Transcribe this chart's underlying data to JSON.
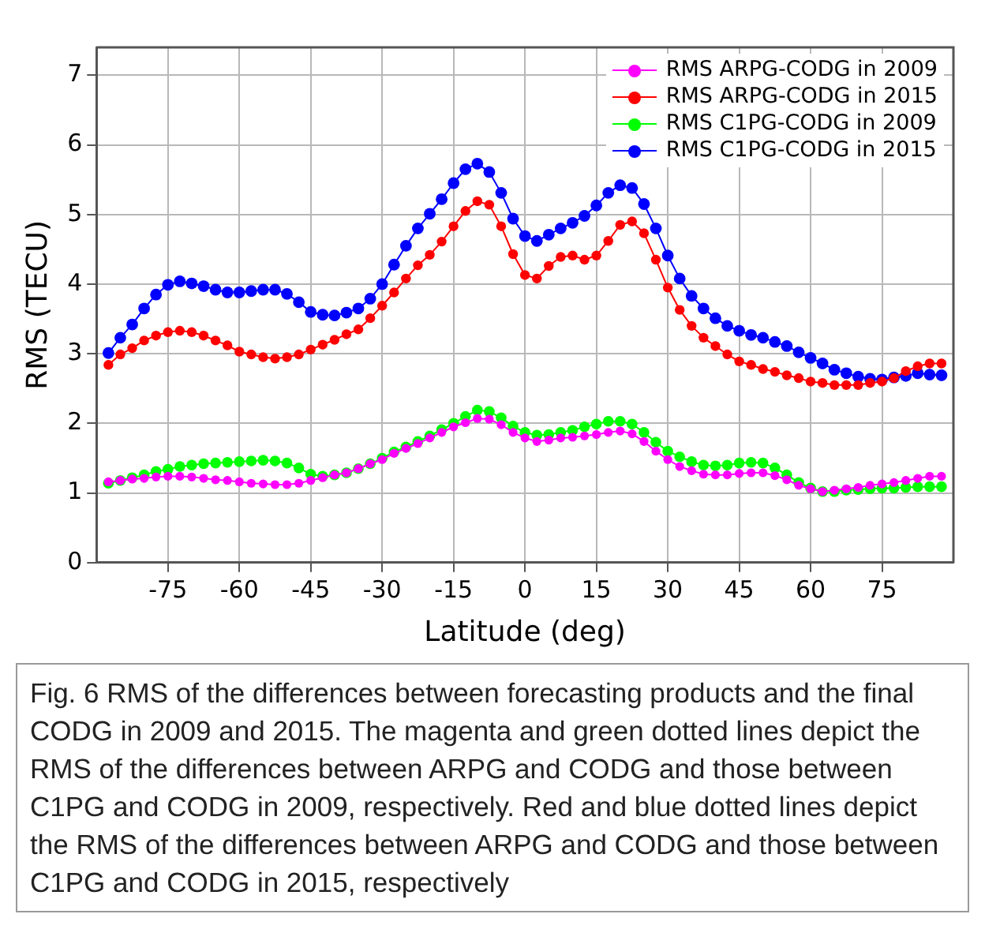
{
  "chart_data": {
    "type": "line",
    "xlabel": "Latitude (deg)",
    "ylabel": "RMS (TECU)",
    "x": [
      -87.5,
      -85,
      -82.5,
      -80,
      -77.5,
      -75,
      -72.5,
      -70,
      -67.5,
      -65,
      -62.5,
      -60,
      -57.5,
      -55,
      -52.5,
      -50,
      -47.5,
      -45,
      -42.5,
      -40,
      -37.5,
      -35,
      -32.5,
      -30,
      -27.5,
      -25,
      -22.5,
      -20,
      -17.5,
      -15,
      -12.5,
      -10,
      -7.5,
      -5,
      -2.5,
      0,
      2.5,
      5,
      7.5,
      10,
      12.5,
      15,
      17.5,
      20,
      22.5,
      25,
      27.5,
      30,
      32.5,
      35,
      37.5,
      40,
      42.5,
      45,
      47.5,
      50,
      52.5,
      55,
      57.5,
      60,
      62.5,
      65,
      67.5,
      70,
      72.5,
      75,
      77.5,
      80,
      82.5,
      85,
      87.5
    ],
    "xlim": [
      -90,
      90
    ],
    "xticks": [
      -75,
      -60,
      -45,
      -30,
      -15,
      0,
      15,
      30,
      45,
      60,
      75
    ],
    "ylim": [
      0,
      7.4
    ],
    "yticks": [
      0,
      1,
      2,
      3,
      4,
      5,
      6,
      7
    ],
    "grid": true,
    "legend": "top right",
    "marker": "circle",
    "line_style": "solid",
    "series": [
      {
        "name": "RMS ARPG-CODG in 2009",
        "color": "#ff00ff",
        "values": [
          1.16,
          1.18,
          1.2,
          1.21,
          1.23,
          1.24,
          1.24,
          1.23,
          1.21,
          1.19,
          1.18,
          1.16,
          1.14,
          1.13,
          1.12,
          1.12,
          1.14,
          1.18,
          1.22,
          1.26,
          1.29,
          1.35,
          1.42,
          1.48,
          1.57,
          1.64,
          1.71,
          1.79,
          1.87,
          1.95,
          2.01,
          2.07,
          2.06,
          1.98,
          1.87,
          1.79,
          1.74,
          1.76,
          1.79,
          1.8,
          1.82,
          1.84,
          1.87,
          1.89,
          1.85,
          1.74,
          1.6,
          1.48,
          1.38,
          1.32,
          1.27,
          1.26,
          1.26,
          1.28,
          1.29,
          1.29,
          1.25,
          1.19,
          1.11,
          1.06,
          1.02,
          1.04,
          1.06,
          1.08,
          1.11,
          1.13,
          1.15,
          1.18,
          1.21,
          1.24,
          1.24
        ]
      },
      {
        "name": "RMS ARPG-CODG in 2015",
        "color": "#ff0000",
        "values": [
          2.84,
          2.99,
          3.08,
          3.19,
          3.26,
          3.31,
          3.33,
          3.31,
          3.26,
          3.19,
          3.12,
          3.03,
          2.99,
          2.95,
          2.93,
          2.95,
          2.99,
          3.06,
          3.13,
          3.2,
          3.28,
          3.35,
          3.51,
          3.69,
          3.88,
          4.08,
          4.27,
          4.42,
          4.61,
          4.83,
          5.05,
          5.19,
          5.14,
          4.83,
          4.43,
          4.13,
          4.08,
          4.26,
          4.39,
          4.41,
          4.35,
          4.41,
          4.62,
          4.85,
          4.9,
          4.73,
          4.35,
          3.95,
          3.63,
          3.4,
          3.23,
          3.11,
          2.99,
          2.89,
          2.84,
          2.78,
          2.74,
          2.69,
          2.65,
          2.6,
          2.58,
          2.55,
          2.55,
          2.55,
          2.58,
          2.6,
          2.65,
          2.75,
          2.82,
          2.86,
          2.86
        ]
      },
      {
        "name": "RMS C1PG-CODG in 2009",
        "color": "#00ff00",
        "values": [
          1.14,
          1.18,
          1.22,
          1.26,
          1.31,
          1.34,
          1.38,
          1.4,
          1.42,
          1.43,
          1.44,
          1.45,
          1.46,
          1.47,
          1.46,
          1.43,
          1.36,
          1.27,
          1.24,
          1.26,
          1.29,
          1.35,
          1.42,
          1.5,
          1.59,
          1.66,
          1.74,
          1.82,
          1.91,
          2.0,
          2.1,
          2.19,
          2.17,
          2.08,
          1.96,
          1.87,
          1.83,
          1.84,
          1.87,
          1.9,
          1.95,
          1.99,
          2.03,
          2.03,
          1.99,
          1.87,
          1.73,
          1.6,
          1.52,
          1.45,
          1.4,
          1.39,
          1.4,
          1.43,
          1.44,
          1.43,
          1.36,
          1.26,
          1.15,
          1.07,
          1.02,
          1.02,
          1.04,
          1.05,
          1.06,
          1.07,
          1.07,
          1.08,
          1.09,
          1.09,
          1.09
        ]
      },
      {
        "name": "RMS C1PG-CODG in 2015",
        "color": "#0000ff",
        "values": [
          3.01,
          3.23,
          3.42,
          3.65,
          3.85,
          3.99,
          4.04,
          4.01,
          3.97,
          3.92,
          3.88,
          3.88,
          3.9,
          3.92,
          3.92,
          3.86,
          3.74,
          3.6,
          3.56,
          3.55,
          3.59,
          3.65,
          3.79,
          4.0,
          4.28,
          4.55,
          4.8,
          5.01,
          5.22,
          5.45,
          5.65,
          5.73,
          5.61,
          5.31,
          4.94,
          4.69,
          4.62,
          4.71,
          4.8,
          4.88,
          4.98,
          5.13,
          5.31,
          5.42,
          5.38,
          5.15,
          4.8,
          4.41,
          4.08,
          3.83,
          3.65,
          3.51,
          3.4,
          3.33,
          3.27,
          3.23,
          3.17,
          3.11,
          3.02,
          2.94,
          2.86,
          2.77,
          2.72,
          2.67,
          2.64,
          2.63,
          2.66,
          2.68,
          2.72,
          2.7,
          2.69
        ]
      }
    ],
    "annotations": [
      "Fig. 6  RMS of the differences between forecasting products and the final CODG in 2009 and 2015. The magenta and green dotted lines depict the RMS of the differences between ARPG and CODG and those between C1PG and CODG in 2009, respectively. Red and blue dotted lines depict the RMS of the differences between ARPG and CODG and those between C1PG and CODG in 2015, respectively"
    ]
  }
}
